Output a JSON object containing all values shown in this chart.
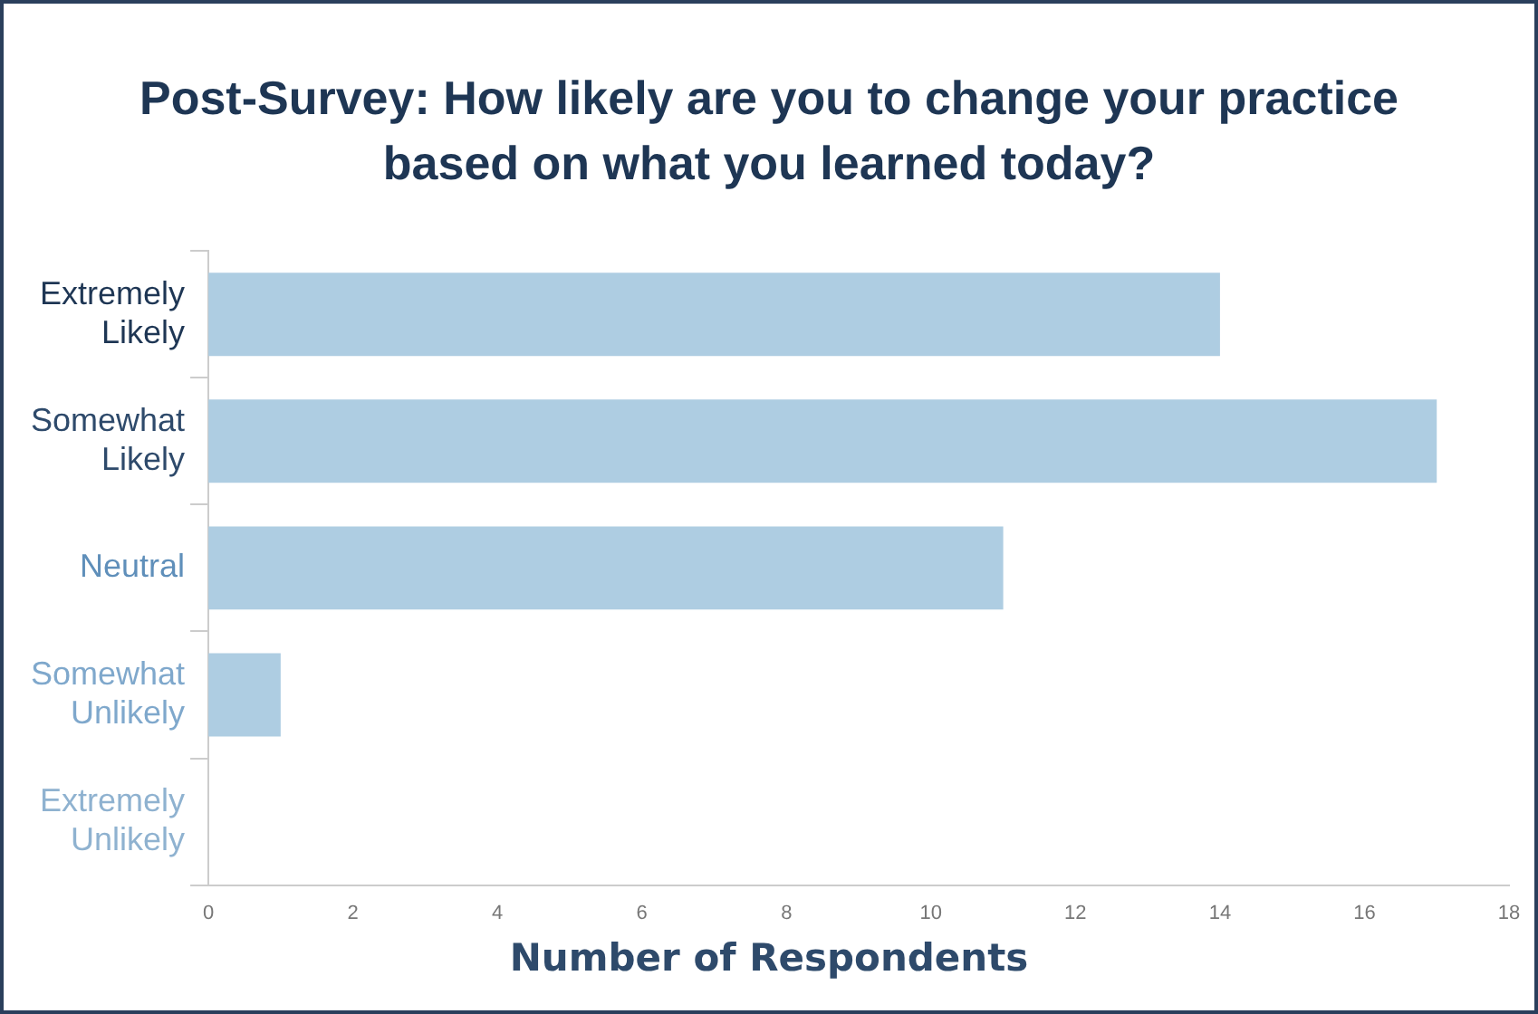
{
  "chart_data": {
    "type": "bar",
    "orientation": "horizontal",
    "title": "Post-Survey: How likely are you to change your practice based on what you learned today?",
    "xlabel": "Number of Respondents",
    "categories": [
      "Extremely Likely",
      "Somewhat Likely",
      "Neutral",
      "Somewhat Unlikely",
      "Extremely Unlikely"
    ],
    "values": [
      14,
      17,
      11,
      1,
      0
    ],
    "color": "#aecde2",
    "xlim": [
      0,
      18
    ],
    "xticks": [
      0,
      2,
      4,
      6,
      8,
      10,
      12,
      14,
      16,
      18
    ],
    "grid": false,
    "legend": false
  }
}
